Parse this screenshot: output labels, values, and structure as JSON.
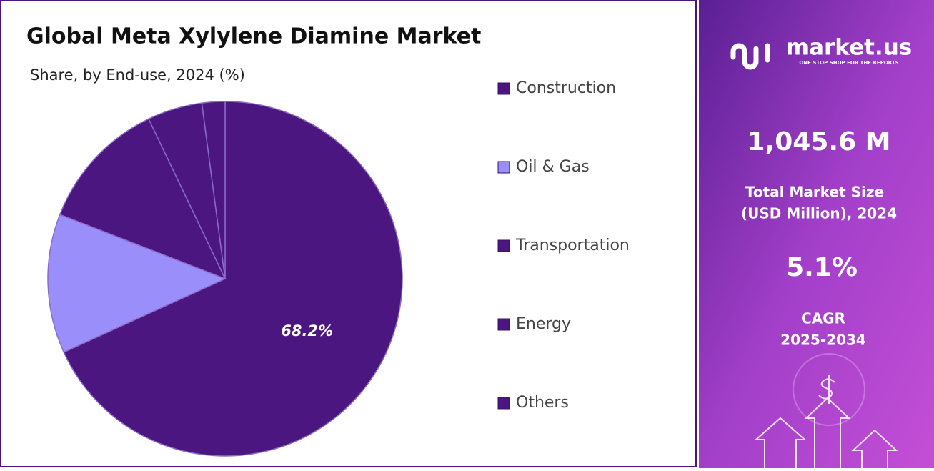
{
  "chart_data": {
    "type": "pie",
    "title": "Global Meta Xylylene Diamine Market",
    "subtitle": "Share, by End-use, 2024 (%)",
    "categories": [
      "Construction",
      "Oil & Gas",
      "Transportation",
      "Energy",
      "Others"
    ],
    "values": [
      68.2,
      12.7,
      12.0,
      5.0,
      2.1
    ],
    "value_labels": [
      "68.2%",
      null,
      null,
      null,
      null
    ],
    "colors": [
      "#4b167f",
      "#9a8ffa",
      "#4b167f",
      "#4b167f",
      "#4b167f"
    ],
    "legend": "right"
  },
  "brand": {
    "name": "market.us",
    "tagline": "ONE STOP SHOP FOR THE REPORTS"
  },
  "stats": {
    "market_size": "1,045.6 M",
    "market_size_label_1": "Total Market Size",
    "market_size_label_2": "(USD Million), 2024",
    "cagr": "5.1%",
    "cagr_label_1": "CAGR",
    "cagr_label_2": "2025-2034"
  }
}
